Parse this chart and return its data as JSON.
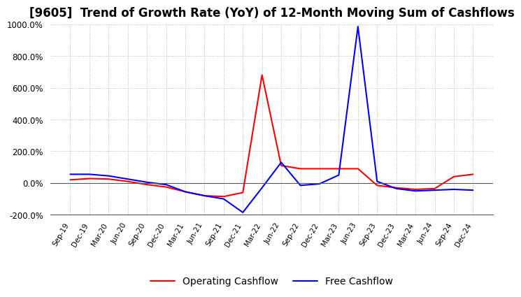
{
  "title": "[9605]  Trend of Growth Rate (YoY) of 12-Month Moving Sum of Cashflows",
  "title_fontsize": 12,
  "ylim": [
    -200,
    1000
  ],
  "yticks": [
    -200,
    0,
    200,
    400,
    600,
    800,
    1000
  ],
  "ytick_labels": [
    "-200.0%",
    "0.0%",
    "200.0%",
    "400.0%",
    "600.0%",
    "800.0%",
    "1000.0%"
  ],
  "x_labels": [
    "Sep-19",
    "Dec-19",
    "Mar-20",
    "Jun-20",
    "Sep-20",
    "Dec-20",
    "Mar-21",
    "Jun-21",
    "Sep-21",
    "Dec-21",
    "Mar-22",
    "Jun-22",
    "Sep-22",
    "Dec-22",
    "Mar-23",
    "Jun-23",
    "Sep-23",
    "Dec-23",
    "Mar-24",
    "Jun-24",
    "Sep-24",
    "Dec-24"
  ],
  "operating_cashflow": [
    20,
    28,
    25,
    10,
    -10,
    -25,
    -55,
    -80,
    -85,
    -60,
    680,
    110,
    90,
    90,
    90,
    90,
    -15,
    -30,
    -40,
    -35,
    40,
    55
  ],
  "free_cashflow": [
    55,
    55,
    45,
    25,
    5,
    -10,
    -55,
    -80,
    -100,
    -185,
    -30,
    130,
    -15,
    -5,
    50,
    985,
    10,
    -35,
    -50,
    -45,
    -40,
    -45
  ],
  "operating_color": "#ff0000",
  "free_color": "#0000ff",
  "background_color": "#ffffff",
  "grid_color": "#b0b0b0",
  "line_width": 1.5
}
